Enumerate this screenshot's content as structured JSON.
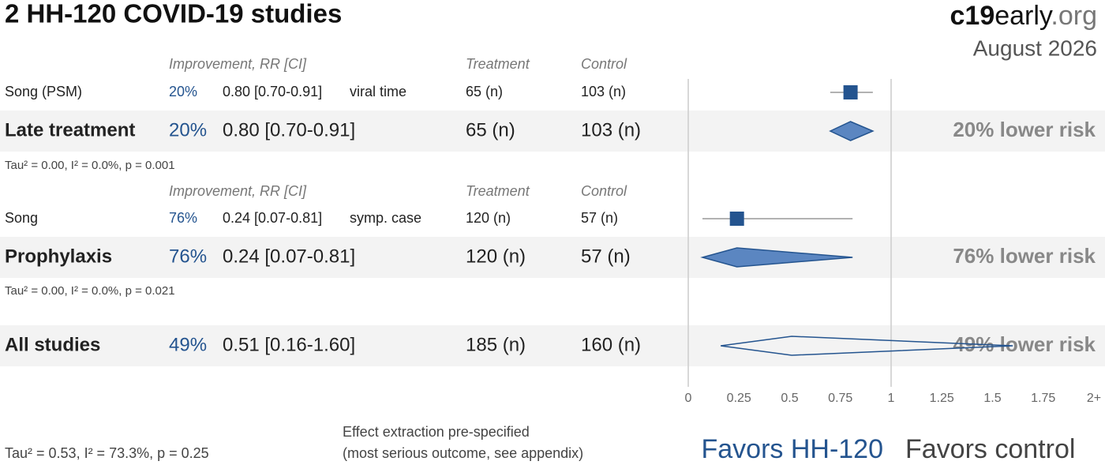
{
  "chart_data": {
    "type": "forest",
    "title": "2 HH-120 COVID-19 studies",
    "logo": {
      "bold": "c19",
      "regular": "early",
      "light": ".org"
    },
    "date": "August 2026",
    "groups": [
      {
        "header": {
          "improvement": "Improvement, RR [CI]",
          "treatment": "Treatment",
          "control": "Control"
        },
        "studies": [
          {
            "name": "Song (PSM)",
            "improvement": "20%",
            "rr_text": "0.80 [0.70-0.91]",
            "outcome": "viral time",
            "treatment": "65 (n)",
            "control": "103 (n)",
            "rr": 0.8,
            "ci": [
              0.7,
              0.91
            ]
          }
        ],
        "summary": {
          "name": "Late treatment",
          "improvement": "20%",
          "rr_text": "0.80 [0.70-0.91]",
          "treatment": "65 (n)",
          "control": "103 (n)",
          "result": "20% lower risk",
          "stats": "Tau² = 0.00, I² = 0.0%, p = 0.001",
          "rr": 0.8,
          "ci": [
            0.7,
            0.91
          ]
        }
      },
      {
        "header": {
          "improvement": "Improvement, RR [CI]",
          "treatment": "Treatment",
          "control": "Control"
        },
        "studies": [
          {
            "name": "Song",
            "improvement": "76%",
            "rr_text": "0.24 [0.07-0.81]",
            "outcome": "symp. case",
            "treatment": "120 (n)",
            "control": "57 (n)",
            "rr": 0.24,
            "ci": [
              0.07,
              0.81
            ]
          }
        ],
        "summary": {
          "name": "Prophylaxis",
          "improvement": "76%",
          "rr_text": "0.24 [0.07-0.81]",
          "treatment": "120 (n)",
          "control": "57 (n)",
          "result": "76% lower risk",
          "stats": "Tau² = 0.00, I² = 0.0%, p = 0.021",
          "rr": 0.24,
          "ci": [
            0.07,
            0.81
          ]
        }
      }
    ],
    "overall": {
      "name": "All studies",
      "improvement": "49%",
      "rr_text": "0.51 [0.16-1.60]",
      "treatment": "185 (n)",
      "control": "160 (n)",
      "result": "49% lower risk",
      "stats": "Tau² = 0.53, I² = 73.3%, p = 0.25",
      "rr": 0.51,
      "ci": [
        0.16,
        1.6
      ]
    },
    "xlim": [
      0,
      2
    ],
    "xticks": [
      0,
      0.25,
      0.5,
      0.75,
      1,
      1.25,
      1.5,
      1.75,
      {
        "value": 2,
        "label": "2+"
      }
    ],
    "reference": 1,
    "color": "#24548f",
    "diamond_fill": "#5b86c1",
    "favors": [
      "Favors HH-120",
      "Favors control"
    ],
    "note": [
      "Effect extraction pre-specified",
      "(most serious outcome, see appendix)"
    ]
  }
}
